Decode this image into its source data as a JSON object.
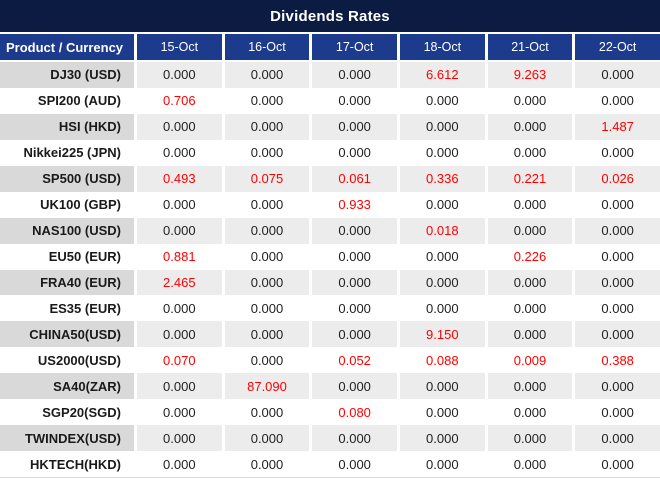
{
  "title": "Dividends Rates",
  "colors": {
    "title_bg": "#0b1b41",
    "header_bg": "#1d3b8c",
    "label_alt_bg": "#d9d9d9",
    "value_alt_bg": "#ececec",
    "hot": "#ff0000"
  },
  "chart_data": {
    "type": "table",
    "title": "Dividends Rates",
    "columns": [
      "Product / Currency",
      "15-Oct",
      "16-Oct",
      "17-Oct",
      "18-Oct",
      "21-Oct",
      "22-Oct"
    ],
    "highlight_rule": "non-zero dividend values rendered in red",
    "rows": [
      {
        "product": "DJ30 (USD)",
        "values": [
          "0.000",
          "0.000",
          "0.000",
          "6.612",
          "9.263",
          "0.000"
        ]
      },
      {
        "product": "SPI200 (AUD)",
        "values": [
          "0.706",
          "0.000",
          "0.000",
          "0.000",
          "0.000",
          "0.000"
        ]
      },
      {
        "product": "HSI (HKD)",
        "values": [
          "0.000",
          "0.000",
          "0.000",
          "0.000",
          "0.000",
          "1.487"
        ]
      },
      {
        "product": "Nikkei225 (JPN)",
        "values": [
          "0.000",
          "0.000",
          "0.000",
          "0.000",
          "0.000",
          "0.000"
        ]
      },
      {
        "product": "SP500 (USD)",
        "values": [
          "0.493",
          "0.075",
          "0.061",
          "0.336",
          "0.221",
          "0.026"
        ]
      },
      {
        "product": "UK100 (GBP)",
        "values": [
          "0.000",
          "0.000",
          "0.933",
          "0.000",
          "0.000",
          "0.000"
        ]
      },
      {
        "product": "NAS100 (USD)",
        "values": [
          "0.000",
          "0.000",
          "0.000",
          "0.018",
          "0.000",
          "0.000"
        ]
      },
      {
        "product": "EU50 (EUR)",
        "values": [
          "0.881",
          "0.000",
          "0.000",
          "0.000",
          "0.226",
          "0.000"
        ]
      },
      {
        "product": "FRA40 (EUR)",
        "values": [
          "2.465",
          "0.000",
          "0.000",
          "0.000",
          "0.000",
          "0.000"
        ]
      },
      {
        "product": "ES35 (EUR)",
        "values": [
          "0.000",
          "0.000",
          "0.000",
          "0.000",
          "0.000",
          "0.000"
        ]
      },
      {
        "product": "CHINA50(USD)",
        "values": [
          "0.000",
          "0.000",
          "0.000",
          "9.150",
          "0.000",
          "0.000"
        ]
      },
      {
        "product": "US2000(USD)",
        "values": [
          "0.070",
          "0.000",
          "0.052",
          "0.088",
          "0.009",
          "0.388"
        ]
      },
      {
        "product": "SA40(ZAR)",
        "values": [
          "0.000",
          "87.090",
          "0.000",
          "0.000",
          "0.000",
          "0.000"
        ]
      },
      {
        "product": "SGP20(SGD)",
        "values": [
          "0.000",
          "0.000",
          "0.080",
          "0.000",
          "0.000",
          "0.000"
        ]
      },
      {
        "product": "TWINDEX(USD)",
        "values": [
          "0.000",
          "0.000",
          "0.000",
          "0.000",
          "0.000",
          "0.000"
        ]
      },
      {
        "product": "HKTECH(HKD)",
        "values": [
          "0.000",
          "0.000",
          "0.000",
          "0.000",
          "0.000",
          "0.000"
        ]
      }
    ]
  }
}
